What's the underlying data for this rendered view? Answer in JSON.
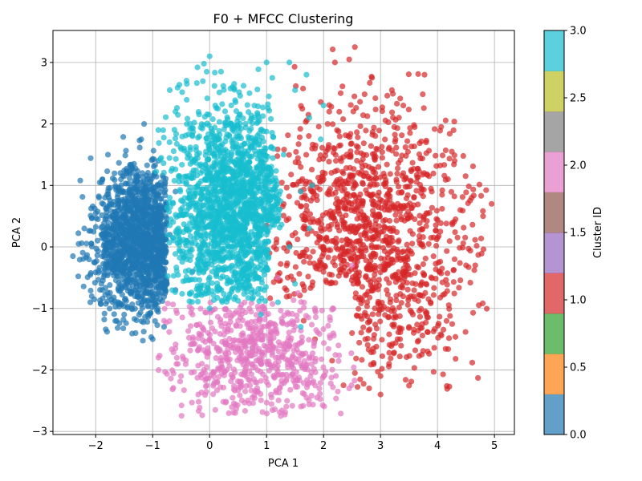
{
  "chart_data": {
    "type": "scatter",
    "title": "F0 + MFCC Clustering",
    "xlabel": "PCA 1",
    "ylabel": "PCA 2",
    "xlim": [
      -2.75,
      5.35
    ],
    "ylim": [
      -3.05,
      3.52
    ],
    "xticks": [
      -2,
      -1,
      0,
      1,
      2,
      3,
      4,
      5
    ],
    "xtick_labels": [
      "−2",
      "−1",
      "0",
      "1",
      "2",
      "3",
      "4",
      "5"
    ],
    "yticks": [
      -3,
      -2,
      -1,
      0,
      1,
      2,
      3
    ],
    "ytick_labels": [
      "−3",
      "−2",
      "−1",
      "0",
      "1",
      "2",
      "3"
    ],
    "grid": true,
    "colorbar": {
      "label": "Cluster ID",
      "range": [
        0.0,
        3.0
      ],
      "ticks": [
        0.0,
        0.5,
        1.0,
        1.5,
        2.0,
        2.5,
        3.0
      ],
      "tick_labels": [
        "0.0",
        "0.5",
        "1.0",
        "1.5",
        "2.0",
        "2.5",
        "3.0"
      ],
      "colors": [
        "#1f77b4",
        "#ff7f0e",
        "#2ca02c",
        "#d62728",
        "#9467bd",
        "#8c564b",
        "#e377c2",
        "#7f7f7f",
        "#bcbd22",
        "#17becf"
      ]
    },
    "marker_alpha": 0.7,
    "clusters": [
      {
        "id": 0,
        "color": "#1f77b4",
        "x_range": [
          -2.45,
          -0.15
        ],
        "y_range": [
          -1.55,
          2.05
        ],
        "points": [
          [
            -2.4,
            -0.15
          ],
          [
            -2.3,
            0.05
          ],
          [
            -2.2,
            0.3
          ],
          [
            -2.0,
            0.55
          ],
          [
            -1.9,
            -0.6
          ],
          [
            -1.8,
            0.85
          ],
          [
            -1.7,
            -0.9
          ],
          [
            -1.6,
            0.95
          ],
          [
            -1.5,
            -1.1
          ],
          [
            -1.4,
            1.2
          ],
          [
            -1.3,
            -1.4
          ],
          [
            -1.2,
            1.75
          ],
          [
            -1.15,
            2.0
          ],
          [
            -1.0,
            -1.5
          ],
          [
            -0.9,
            1.4
          ],
          [
            -0.8,
            -1.3
          ],
          [
            -0.6,
            -0.7
          ],
          [
            -0.4,
            0.1
          ],
          [
            -0.3,
            -0.4
          ],
          [
            -1.5,
            0.0
          ],
          [
            -1.2,
            0.4
          ],
          [
            -1.0,
            -0.3
          ],
          [
            -0.8,
            0.6
          ],
          [
            -1.7,
            -0.2
          ],
          [
            -0.9,
            -0.9
          ],
          [
            -0.6,
            0.9
          ],
          [
            -1.3,
            -0.7
          ],
          [
            -1.1,
            0.9
          ],
          [
            -0.7,
            0.2
          ],
          [
            -1.9,
            0.2
          ]
        ]
      },
      {
        "id": 1,
        "color": "#d62728",
        "x_range": [
          0.9,
          4.95
        ],
        "y_range": [
          -2.45,
          3.25
        ],
        "points": [
          [
            2.55,
            3.25
          ],
          [
            2.45,
            3.05
          ],
          [
            2.2,
            3.0
          ],
          [
            2.85,
            2.75
          ],
          [
            2.3,
            2.5
          ],
          [
            3.2,
            2.55
          ],
          [
            3.4,
            2.3
          ],
          [
            2.1,
            2.2
          ],
          [
            3.6,
            1.95
          ],
          [
            3.8,
            1.7
          ],
          [
            4.3,
            1.4
          ],
          [
            4.6,
            0.8
          ],
          [
            4.95,
            0.7
          ],
          [
            4.8,
            0.5
          ],
          [
            4.4,
            0.6
          ],
          [
            4.3,
            -0.2
          ],
          [
            4.05,
            0.25
          ],
          [
            3.8,
            -0.6
          ],
          [
            3.6,
            -0.85
          ],
          [
            3.5,
            -1.3
          ],
          [
            3.3,
            -1.5
          ],
          [
            3.15,
            -1.9
          ],
          [
            3.0,
            -2.1
          ],
          [
            3.0,
            -2.4
          ],
          [
            2.8,
            -2.3
          ],
          [
            2.55,
            -2.05
          ],
          [
            2.35,
            -2.25
          ],
          [
            2.15,
            -1.85
          ],
          [
            1.85,
            -1.5
          ],
          [
            1.65,
            -1.2
          ],
          [
            1.4,
            -0.8
          ],
          [
            1.2,
            -0.45
          ],
          [
            1.05,
            -0.1
          ],
          [
            1.0,
            0.35
          ],
          [
            1.3,
            0.7
          ],
          [
            1.6,
            1.3
          ],
          [
            1.85,
            1.6
          ],
          [
            2.0,
            1.1
          ],
          [
            2.4,
            0.8
          ],
          [
            2.8,
            0.4
          ],
          [
            3.1,
            0.1
          ],
          [
            3.3,
            0.7
          ],
          [
            3.6,
            0.45
          ],
          [
            2.6,
            -0.6
          ],
          [
            2.9,
            -1.0
          ],
          [
            2.2,
            -0.3
          ],
          [
            3.9,
            0.9
          ],
          [
            3.4,
            1.2
          ],
          [
            2.7,
            1.5
          ],
          [
            2.5,
            -1.4
          ]
        ]
      },
      {
        "id": 2,
        "color": "#e377c2",
        "x_range": [
          -0.95,
          2.55
        ],
        "y_range": [
          -2.75,
          -0.25
        ],
        "points": [
          [
            -0.9,
            -1.8
          ],
          [
            -0.8,
            -1.2
          ],
          [
            -0.6,
            -1.65
          ],
          [
            -0.5,
            -2.1
          ],
          [
            -0.3,
            -1.1
          ],
          [
            -0.2,
            -2.4
          ],
          [
            0.0,
            -1.5
          ],
          [
            0.1,
            -2.65
          ],
          [
            0.3,
            -2.0
          ],
          [
            0.45,
            -2.7
          ],
          [
            0.6,
            -1.6
          ],
          [
            0.75,
            -2.45
          ],
          [
            0.9,
            -1.9
          ],
          [
            1.1,
            -1.25
          ],
          [
            1.25,
            -2.75
          ],
          [
            1.4,
            -1.6
          ],
          [
            1.55,
            -0.75
          ],
          [
            1.7,
            -2.45
          ],
          [
            1.85,
            -1.0
          ],
          [
            2.0,
            -2.1
          ],
          [
            2.25,
            -2.35
          ],
          [
            2.45,
            -2.3
          ],
          [
            2.5,
            -0.3
          ],
          [
            1.2,
            -0.5
          ],
          [
            0.5,
            -1.2
          ],
          [
            0.2,
            -1.8
          ],
          [
            0.8,
            -2.2
          ],
          [
            -0.1,
            -2.0
          ],
          [
            1.6,
            -1.9
          ],
          [
            0.7,
            -1.0
          ]
        ]
      },
      {
        "id": 3,
        "color": "#17becf",
        "x_range": [
          -0.95,
          2.05
        ],
        "y_range": [
          -1.3,
          3.1
        ],
        "points": [
          [
            0.0,
            3.1
          ],
          [
            -0.1,
            2.98
          ],
          [
            0.2,
            2.85
          ],
          [
            1.0,
            3.0
          ],
          [
            1.4,
            3.0
          ],
          [
            1.7,
            2.8
          ],
          [
            -0.4,
            2.65
          ],
          [
            -0.7,
            2.55
          ],
          [
            0.4,
            2.6
          ],
          [
            0.7,
            2.5
          ],
          [
            1.1,
            2.75
          ],
          [
            1.5,
            2.55
          ],
          [
            2.0,
            2.3
          ],
          [
            1.95,
            1.75
          ],
          [
            1.75,
            2.1
          ],
          [
            -0.9,
            1.9
          ],
          [
            -0.6,
            2.2
          ],
          [
            -0.85,
            1.45
          ],
          [
            -0.7,
            0.8
          ],
          [
            -0.55,
            0.3
          ],
          [
            -0.4,
            -0.2
          ],
          [
            -0.2,
            -0.7
          ],
          [
            0.0,
            -1.0
          ],
          [
            0.3,
            -0.5
          ],
          [
            0.6,
            -0.35
          ],
          [
            0.9,
            -1.1
          ],
          [
            1.2,
            -0.9
          ],
          [
            1.5,
            -0.6
          ],
          [
            1.75,
            0.3
          ],
          [
            1.6,
            0.9
          ],
          [
            1.3,
            1.5
          ],
          [
            0.9,
            1.9
          ],
          [
            0.5,
            2.1
          ],
          [
            0.1,
            2.3
          ],
          [
            -0.3,
            1.8
          ],
          [
            0.2,
            1.2
          ],
          [
            0.6,
            0.6
          ],
          [
            1.0,
            0.2
          ],
          [
            0.4,
            -0.1
          ],
          [
            -0.1,
            0.5
          ],
          [
            1.4,
            0.0
          ],
          [
            0.8,
            1.1
          ],
          [
            0.0,
            1.6
          ],
          [
            1.8,
            1.0
          ],
          [
            1.6,
            -1.3
          ]
        ]
      }
    ]
  }
}
